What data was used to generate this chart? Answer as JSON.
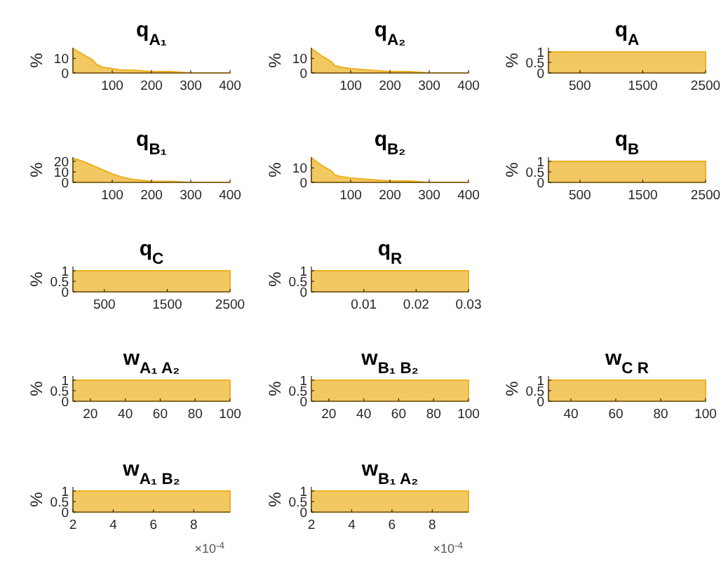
{
  "chart_data": [
    {
      "type": "area",
      "title": "q$_{A₁}$",
      "ylabel": "%",
      "color": "#edb120",
      "x": [
        0,
        25,
        50,
        60,
        75,
        100,
        125,
        150,
        200,
        250,
        300,
        350,
        400
      ],
      "values": [
        17,
        13,
        9,
        6,
        4,
        3,
        2,
        2,
        1,
        1,
        0,
        0,
        0
      ],
      "xlim": [
        0,
        400
      ],
      "xticks": [
        100,
        200,
        300,
        400
      ],
      "ylim": [
        0,
        17.5
      ],
      "yticks": [
        0,
        10
      ]
    },
    {
      "type": "area",
      "title": "q$_{A₂}$",
      "ylabel": "%",
      "color": "#edb120",
      "x": [
        0,
        25,
        50,
        60,
        75,
        100,
        150,
        200,
        250,
        300,
        350,
        400
      ],
      "values": [
        17,
        12,
        8,
        5,
        4,
        3,
        2,
        1,
        1,
        0,
        0,
        0
      ],
      "xlim": [
        0,
        400
      ],
      "xticks": [
        100,
        200,
        300,
        400
      ],
      "ylim": [
        0,
        17.5
      ],
      "yticks": [
        0,
        10
      ]
    },
    {
      "type": "area",
      "title": "q$_{A}$",
      "ylabel": "%",
      "color": "#edb120",
      "x": [
        0,
        250,
        500,
        750,
        1000,
        1250,
        1500,
        1750,
        2000,
        2250,
        2500
      ],
      "values": [
        1,
        1,
        1,
        1,
        1,
        1,
        1,
        1,
        1,
        1,
        1
      ],
      "xlim": [
        0,
        2500
      ],
      "xticks": [
        500,
        1500,
        2500
      ],
      "ylim": [
        0,
        1.2
      ],
      "yticks": [
        0,
        0.5,
        1
      ]
    },
    {
      "type": "area",
      "title": "q$_{B₁}$",
      "ylabel": "%",
      "color": "#edb120",
      "x": [
        0,
        25,
        50,
        75,
        100,
        125,
        150,
        175,
        200,
        250,
        300,
        350,
        400
      ],
      "values": [
        23,
        20,
        16,
        12,
        8,
        5,
        3,
        2,
        1,
        1,
        0,
        0,
        0
      ],
      "xlim": [
        0,
        400
      ],
      "xticks": [
        100,
        200,
        300,
        400
      ],
      "ylim": [
        0,
        24
      ],
      "yticks": [
        0,
        10,
        20
      ]
    },
    {
      "type": "area",
      "title": "q$_{B₂}$",
      "ylabel": "%",
      "color": "#edb120",
      "x": [
        0,
        25,
        50,
        60,
        75,
        100,
        150,
        200,
        250,
        300,
        400
      ],
      "values": [
        17,
        12,
        8,
        5,
        4,
        3,
        2,
        1,
        1,
        0,
        0
      ],
      "xlim": [
        0,
        400
      ],
      "xticks": [
        100,
        200,
        300,
        400
      ],
      "ylim": [
        0,
        17.5
      ],
      "yticks": [
        0,
        10
      ]
    },
    {
      "type": "area",
      "title": "q$_{B}$",
      "ylabel": "%",
      "color": "#edb120",
      "x": [
        0,
        250,
        500,
        750,
        1000,
        1250,
        1500,
        1750,
        2000,
        2250,
        2500
      ],
      "values": [
        1,
        1,
        1,
        1,
        1,
        1,
        1,
        1,
        1,
        1,
        1
      ],
      "xlim": [
        0,
        2500
      ],
      "xticks": [
        500,
        1500,
        2500
      ],
      "ylim": [
        0,
        1.2
      ],
      "yticks": [
        0,
        0.5,
        1
      ]
    },
    {
      "type": "area",
      "title": "q$_{C}$",
      "ylabel": "%",
      "color": "#edb120",
      "x": [
        0,
        250,
        500,
        750,
        1000,
        1250,
        1500,
        1750,
        2000,
        2250,
        2500
      ],
      "values": [
        1,
        1,
        1,
        1,
        1,
        1,
        1,
        1,
        1,
        1,
        1
      ],
      "xlim": [
        0,
        2500
      ],
      "xticks": [
        500,
        1500,
        2500
      ],
      "ylim": [
        0,
        1.2
      ],
      "yticks": [
        0,
        0.5,
        1
      ]
    },
    {
      "type": "area",
      "title": "q$_{R}$",
      "ylabel": "%",
      "color": "#edb120",
      "x": [
        0,
        0.003,
        0.006,
        0.009,
        0.012,
        0.015,
        0.018,
        0.021,
        0.024,
        0.027,
        0.03
      ],
      "values": [
        1,
        1,
        1,
        1,
        1,
        1,
        1,
        1,
        1,
        1,
        1
      ],
      "xlim": [
        0,
        0.03
      ],
      "xticks": [
        0.01,
        0.02,
        0.03
      ],
      "ylim": [
        0,
        1.2
      ],
      "yticks": [
        0,
        0.5,
        1
      ]
    },
    {
      "type": "area",
      "title": "w$_{A₁ A₂}$",
      "ylabel": "%",
      "color": "#edb120",
      "x": [
        10,
        19,
        28,
        37,
        46,
        55,
        64,
        73,
        82,
        91,
        100
      ],
      "values": [
        1,
        1,
        1,
        1,
        1,
        1,
        1,
        1,
        1,
        1,
        1
      ],
      "xlim": [
        10,
        100
      ],
      "xticks": [
        20,
        40,
        60,
        80,
        100
      ],
      "ylim": [
        0,
        1.2
      ],
      "yticks": [
        0,
        0.5,
        1
      ]
    },
    {
      "type": "area",
      "title": "w$_{B₁ B₂}$",
      "ylabel": "%",
      "color": "#edb120",
      "x": [
        10,
        19,
        28,
        37,
        46,
        55,
        64,
        73,
        82,
        91,
        100
      ],
      "values": [
        1,
        1,
        1,
        1,
        1,
        1,
        1,
        1,
        1,
        1,
        1
      ],
      "xlim": [
        10,
        100
      ],
      "xticks": [
        20,
        40,
        60,
        80,
        100
      ],
      "ylim": [
        0,
        1.2
      ],
      "yticks": [
        0,
        0.5,
        1
      ]
    },
    {
      "type": "area",
      "title": "w$_{C R}$",
      "ylabel": "%",
      "color": "#edb120",
      "x": [
        30,
        37,
        44,
        51,
        58,
        65,
        72,
        79,
        86,
        93,
        100
      ],
      "values": [
        1,
        1,
        1,
        1,
        1,
        1,
        1,
        1,
        1,
        1,
        1
      ],
      "xlim": [
        30,
        100
      ],
      "xticks": [
        40,
        60,
        80,
        100
      ],
      "ylim": [
        0,
        1.2
      ],
      "yticks": [
        0,
        0.5,
        1
      ]
    },
    {
      "type": "area",
      "title": "w$_{A₁ B₂}$",
      "ylabel": "%",
      "color": "#edb120",
      "x": [
        2,
        2.8,
        3.6,
        4.4,
        5.2,
        6,
        6.8,
        7.6,
        8.4,
        9.2,
        9.8
      ],
      "values": [
        1,
        1,
        1,
        1,
        1,
        1,
        1,
        1,
        1,
        1,
        1
      ],
      "xlim": [
        2,
        9.8
      ],
      "xticks": [
        2,
        4,
        6,
        8
      ],
      "ylim": [
        0,
        1.2
      ],
      "yticks": [
        0,
        0.5,
        1
      ],
      "annotations": [
        "×10$^{-4}$"
      ]
    },
    {
      "type": "area",
      "title": "w$_{B₁ A₂}$",
      "ylabel": "%",
      "color": "#edb120",
      "x": [
        2,
        2.8,
        3.6,
        4.4,
        5.2,
        6,
        6.8,
        7.6,
        8.4,
        9.2,
        9.8
      ],
      "values": [
        1,
        1,
        1,
        1,
        1,
        1,
        1,
        1,
        1,
        1,
        1
      ],
      "xlim": [
        2,
        9.8
      ],
      "xticks": [
        2,
        4,
        6,
        8
      ],
      "ylim": [
        0,
        1.2
      ],
      "yticks": [
        0,
        0.5,
        1
      ],
      "annotations": [
        "×10$^{-4}$"
      ]
    }
  ]
}
